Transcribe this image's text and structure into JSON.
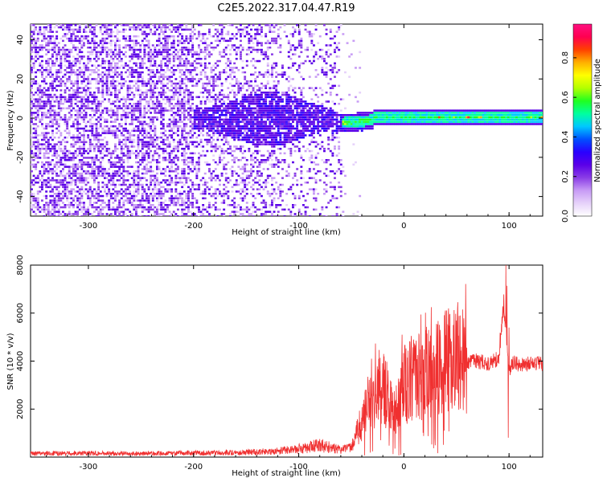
{
  "title": "C2E5.2022.317.04.47.R19",
  "colors": {
    "snr_line": "#f03030",
    "background": "#ffffff",
    "colormap": [
      "#ffffff",
      "#e6d2fa",
      "#c89cf5",
      "#8a3de6",
      "#5a00e8",
      "#2a00ff",
      "#0050ff",
      "#00c8ff",
      "#00ffa0",
      "#20ff20",
      "#b4ff00",
      "#ffff00",
      "#ffb000",
      "#ff4000",
      "#ff0050",
      "#ff1080"
    ]
  },
  "chart_data": [
    {
      "type": "heatmap",
      "title": "",
      "xlabel": "Height of straight line (km)",
      "ylabel": "Frequency (Hz)",
      "xlim": [
        -355,
        132
      ],
      "ylim": [
        -50,
        48
      ],
      "xticks": [
        -300,
        -200,
        -100,
        0,
        100
      ],
      "yticks": [
        -40,
        -20,
        0,
        20,
        40
      ],
      "colorbar": {
        "label": "Normalized spectral amplitude",
        "range": [
          0,
          0.97
        ],
        "ticks": [
          0.0,
          0.2,
          0.4,
          0.6,
          0.8
        ]
      },
      "features": [
        {
          "region": "noise",
          "x": [
            -355,
            -60
          ],
          "y": [
            -50,
            48
          ],
          "amplitude": 0.2
        },
        {
          "region": "spread",
          "x": [
            -200,
            -40
          ],
          "y": [
            -12,
            12
          ],
          "amplitude": 0.3
        },
        {
          "region": "signal",
          "x": [
            -60,
            132
          ],
          "y": [
            -3,
            4
          ],
          "amplitude": 0.5
        },
        {
          "region": "peaks",
          "x": [
            -20,
            132
          ],
          "y": [
            -1,
            2
          ],
          "amplitude": 0.9
        }
      ]
    },
    {
      "type": "line",
      "title": "",
      "xlabel": "Height of straight line (km)",
      "ylabel": "SNR (10 * v/v)",
      "xlim": [
        -355,
        132
      ],
      "ylim": [
        0,
        8000
      ],
      "xticks": [
        -300,
        -200,
        -100,
        0,
        100
      ],
      "yticks": [
        2000,
        4000,
        6000,
        8000
      ],
      "series": [
        {
          "x": [
            -355,
            -300,
            -250,
            -200,
            -150,
            -120,
            -100,
            -80,
            -60,
            -50,
            -40,
            -30,
            -20,
            -10,
            0,
            10,
            20,
            30,
            40,
            45,
            50,
            55,
            60,
            70,
            80,
            90,
            95,
            100,
            105,
            110,
            120,
            132
          ],
          "y": [
            150,
            160,
            150,
            170,
            200,
            250,
            350,
            500,
            300,
            400,
            1500,
            2500,
            2900,
            1800,
            3000,
            3200,
            3500,
            3700,
            4000,
            4400,
            4200,
            4100,
            4000,
            4000,
            3900,
            4100,
            6500,
            3600,
            4000,
            3800,
            3900,
            3900
          ]
        }
      ]
    }
  ]
}
